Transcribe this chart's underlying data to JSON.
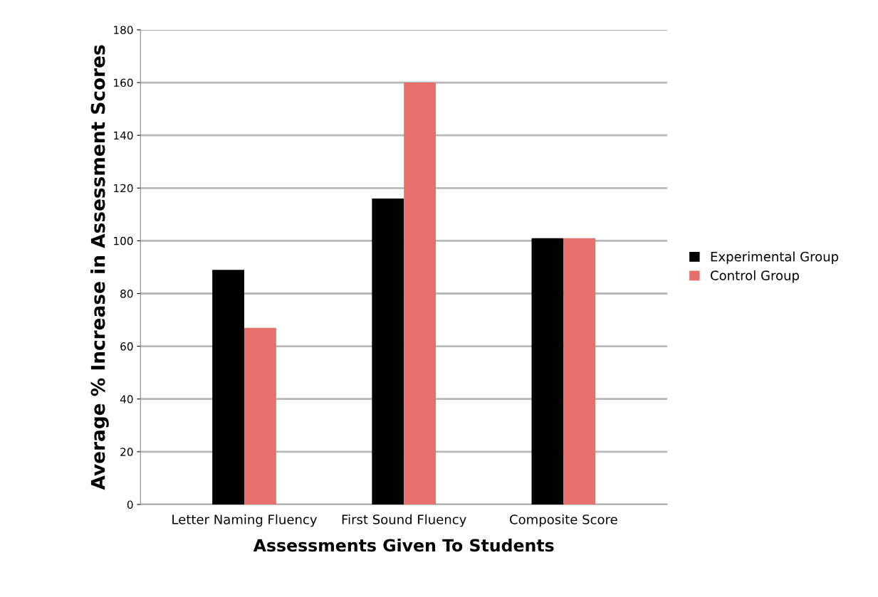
{
  "chart_data": {
    "type": "bar",
    "xlabel": "Assessments Given To Students",
    "ylabel": "Average % Increase in Assessment Scores",
    "categories": [
      "Letter Naming Fluency",
      "First Sound Fluency",
      "Composite Score"
    ],
    "series": [
      {
        "name": "Experimental Group",
        "color": "#000000",
        "values": [
          89,
          116,
          101
        ]
      },
      {
        "name": "Control Group",
        "color": "#e6706c",
        "values": [
          67,
          160,
          101
        ]
      }
    ],
    "ylim": [
      0,
      180
    ],
    "yticks": [
      0,
      20,
      40,
      60,
      80,
      100,
      120,
      140,
      160,
      180
    ],
    "grid": "y",
    "legend": "right"
  }
}
